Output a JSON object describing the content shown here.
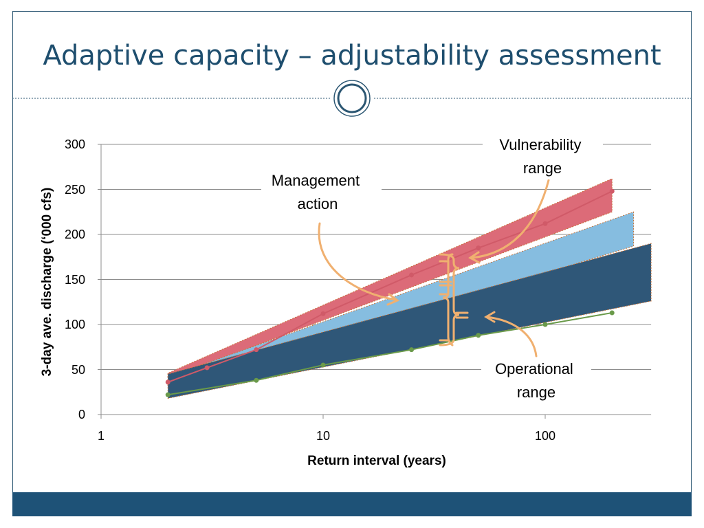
{
  "slide": {
    "title": "Adaptive capacity – adjustability assessment"
  },
  "colors": {
    "title": "#1e4e6e",
    "vulnerability": "#dc6b78",
    "management": "#86bde0",
    "operational": "#2f5778",
    "arrow": "#f0b070",
    "footer": "#1e5277"
  },
  "chart_data": {
    "type": "area",
    "title": "",
    "xlabel": "Return interval (years)",
    "ylabel": "3-day ave. discharge (‘000 cfs)",
    "xscale": "log",
    "xlim": [
      1,
      300
    ],
    "ylim": [
      0,
      300
    ],
    "x_ticks": [
      1,
      10,
      100
    ],
    "x_tick_labels": [
      "1",
      "10",
      "100"
    ],
    "y_ticks": [
      0,
      50,
      100,
      150,
      200,
      250,
      300
    ],
    "y_tick_labels": [
      "0",
      "50",
      "100",
      "150",
      "200",
      "250",
      "300"
    ],
    "grid": "horizontal",
    "series": [
      {
        "key": "vulnerability",
        "x": [
          2,
          200
        ],
        "lower": [
          40,
          225
        ],
        "upper": [
          46,
          262
        ]
      },
      {
        "key": "management",
        "x": [
          2,
          250
        ],
        "lower": [
          30,
          187
        ],
        "upper": [
          42,
          225
        ]
      },
      {
        "key": "operational",
        "x": [
          2,
          300
        ],
        "lower": [
          18,
          126
        ],
        "upper": [
          45,
          190
        ]
      }
    ],
    "lines": [
      {
        "key": "red-line",
        "x": [
          2,
          3,
          5,
          10,
          25,
          50,
          100,
          200
        ],
        "y": [
          36,
          52,
          72,
          112,
          155,
          185,
          212,
          248
        ]
      },
      {
        "key": "green-line",
        "x": [
          2,
          5,
          10,
          25,
          50,
          100,
          200
        ],
        "y": [
          22,
          38,
          55,
          72,
          88,
          100,
          113
        ]
      }
    ],
    "annotations": [
      {
        "key": "management",
        "lines": [
          "Management",
          "action"
        ]
      },
      {
        "key": "vulnerability",
        "lines": [
          "Vulnerability",
          "range"
        ]
      },
      {
        "key": "operational",
        "lines": [
          "Operational",
          "range"
        ]
      }
    ]
  }
}
